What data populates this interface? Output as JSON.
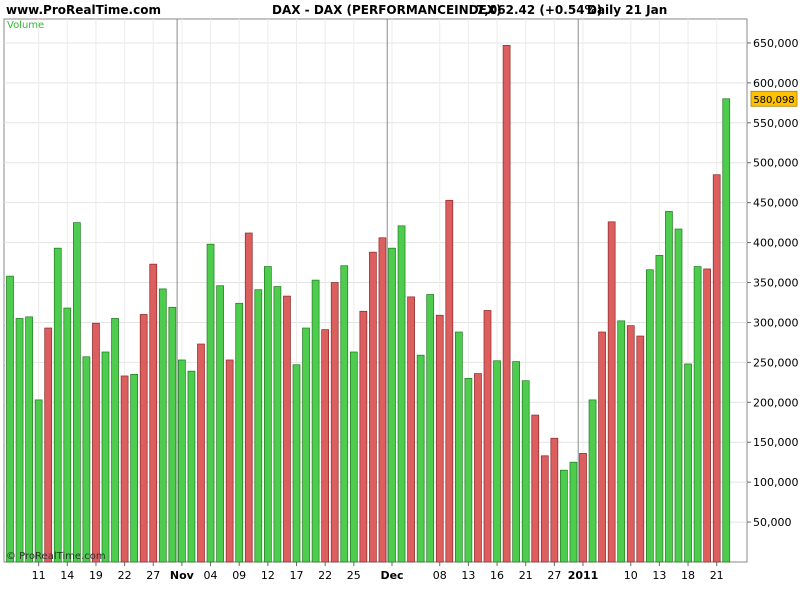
{
  "header": {
    "site": "www.ProRealTime.com",
    "instrument": "DAX - DAX (PERFORMANCEINDEX)",
    "price": "7,062.42 (+0.54%)",
    "period": "Daily  21 Jan"
  },
  "indicator_label": "Volume",
  "watermark": "© ProRealTime.com",
  "last_value_badge": "580,098",
  "colors": {
    "up": "#4dcc4d",
    "down": "#dd5e5e",
    "badge": "#ffc000",
    "indicator_label": "#33bb33"
  },
  "chart_data": {
    "type": "bar",
    "title": "",
    "ylim": [
      0,
      680000
    ],
    "grid": true,
    "y_ticks": [
      {
        "value": 50000,
        "label": "50,000"
      },
      {
        "value": 100000,
        "label": "100,000"
      },
      {
        "value": 150000,
        "label": "150,000"
      },
      {
        "value": 200000,
        "label": "200,000"
      },
      {
        "value": 250000,
        "label": "250,000"
      },
      {
        "value": 300000,
        "label": "300,000"
      },
      {
        "value": 350000,
        "label": "350,000"
      },
      {
        "value": 400000,
        "label": "400,000"
      },
      {
        "value": 450000,
        "label": "450,000"
      },
      {
        "value": 500000,
        "label": "500,000"
      },
      {
        "value": 550000,
        "label": "550,000"
      },
      {
        "value": 600000,
        "label": "600,000"
      },
      {
        "value": 650000,
        "label": "650,000"
      }
    ],
    "x_ticks": [
      {
        "index": 3,
        "label": "11"
      },
      {
        "index": 6,
        "label": "14"
      },
      {
        "index": 9,
        "label": "19"
      },
      {
        "index": 12,
        "label": "22"
      },
      {
        "index": 15,
        "label": "27"
      },
      {
        "index": 18,
        "label": "Nov",
        "bold": true
      },
      {
        "index": 21,
        "label": "04"
      },
      {
        "index": 24,
        "label": "09"
      },
      {
        "index": 27,
        "label": "12"
      },
      {
        "index": 30,
        "label": "17"
      },
      {
        "index": 33,
        "label": "22"
      },
      {
        "index": 36,
        "label": "25"
      },
      {
        "index": 40,
        "label": "Dec",
        "bold": true
      },
      {
        "index": 45,
        "label": "08"
      },
      {
        "index": 48,
        "label": "13"
      },
      {
        "index": 51,
        "label": "16"
      },
      {
        "index": 54,
        "label": "21"
      },
      {
        "index": 57,
        "label": "27"
      },
      {
        "index": 60,
        "label": "2011",
        "bold": true
      },
      {
        "index": 65,
        "label": "10"
      },
      {
        "index": 68,
        "label": "13"
      },
      {
        "index": 71,
        "label": "18"
      },
      {
        "index": 74,
        "label": "21"
      }
    ],
    "separators": [
      18,
      40,
      60
    ],
    "bars": [
      {
        "v": 358000,
        "d": "up"
      },
      {
        "v": 305000,
        "d": "up"
      },
      {
        "v": 307000,
        "d": "up"
      },
      {
        "v": 203000,
        "d": "up"
      },
      {
        "v": 293000,
        "d": "down"
      },
      {
        "v": 393000,
        "d": "up"
      },
      {
        "v": 318000,
        "d": "up"
      },
      {
        "v": 425000,
        "d": "up"
      },
      {
        "v": 257000,
        "d": "up"
      },
      {
        "v": 299000,
        "d": "down"
      },
      {
        "v": 263000,
        "d": "up"
      },
      {
        "v": 305000,
        "d": "up"
      },
      {
        "v": 233000,
        "d": "down"
      },
      {
        "v": 235000,
        "d": "up"
      },
      {
        "v": 310000,
        "d": "down"
      },
      {
        "v": 373000,
        "d": "down"
      },
      {
        "v": 342000,
        "d": "up"
      },
      {
        "v": 319000,
        "d": "up"
      },
      {
        "v": 253000,
        "d": "up"
      },
      {
        "v": 239000,
        "d": "up"
      },
      {
        "v": 273000,
        "d": "down"
      },
      {
        "v": 398000,
        "d": "up"
      },
      {
        "v": 346000,
        "d": "up"
      },
      {
        "v": 253000,
        "d": "down"
      },
      {
        "v": 324000,
        "d": "up"
      },
      {
        "v": 412000,
        "d": "down"
      },
      {
        "v": 341000,
        "d": "up"
      },
      {
        "v": 370000,
        "d": "up"
      },
      {
        "v": 345000,
        "d": "up"
      },
      {
        "v": 333000,
        "d": "down"
      },
      {
        "v": 247000,
        "d": "up"
      },
      {
        "v": 293000,
        "d": "up"
      },
      {
        "v": 353000,
        "d": "up"
      },
      {
        "v": 291000,
        "d": "down"
      },
      {
        "v": 350000,
        "d": "down"
      },
      {
        "v": 371000,
        "d": "up"
      },
      {
        "v": 263000,
        "d": "up"
      },
      {
        "v": 314000,
        "d": "down"
      },
      {
        "v": 388000,
        "d": "down"
      },
      {
        "v": 406000,
        "d": "down"
      },
      {
        "v": 393000,
        "d": "up"
      },
      {
        "v": 421000,
        "d": "up"
      },
      {
        "v": 332000,
        "d": "down"
      },
      {
        "v": 259000,
        "d": "up"
      },
      {
        "v": 335000,
        "d": "up"
      },
      {
        "v": 309000,
        "d": "down"
      },
      {
        "v": 453000,
        "d": "down"
      },
      {
        "v": 288000,
        "d": "up"
      },
      {
        "v": 230000,
        "d": "up"
      },
      {
        "v": 236000,
        "d": "down"
      },
      {
        "v": 315000,
        "d": "down"
      },
      {
        "v": 252000,
        "d": "up"
      },
      {
        "v": 647000,
        "d": "down"
      },
      {
        "v": 251000,
        "d": "up"
      },
      {
        "v": 227000,
        "d": "up"
      },
      {
        "v": 184000,
        "d": "down"
      },
      {
        "v": 133000,
        "d": "down"
      },
      {
        "v": 155000,
        "d": "down"
      },
      {
        "v": 115000,
        "d": "up"
      },
      {
        "v": 125000,
        "d": "up"
      },
      {
        "v": 136000,
        "d": "down"
      },
      {
        "v": 203000,
        "d": "up"
      },
      {
        "v": 288000,
        "d": "down"
      },
      {
        "v": 426000,
        "d": "down"
      },
      {
        "v": 302000,
        "d": "up"
      },
      {
        "v": 296000,
        "d": "down"
      },
      {
        "v": 283000,
        "d": "down"
      },
      {
        "v": 366000,
        "d": "up"
      },
      {
        "v": 384000,
        "d": "up"
      },
      {
        "v": 439000,
        "d": "up"
      },
      {
        "v": 417000,
        "d": "up"
      },
      {
        "v": 248000,
        "d": "up"
      },
      {
        "v": 370000,
        "d": "up"
      },
      {
        "v": 367000,
        "d": "down"
      },
      {
        "v": 485000,
        "d": "down"
      },
      {
        "v": 580098,
        "d": "up"
      }
    ]
  }
}
